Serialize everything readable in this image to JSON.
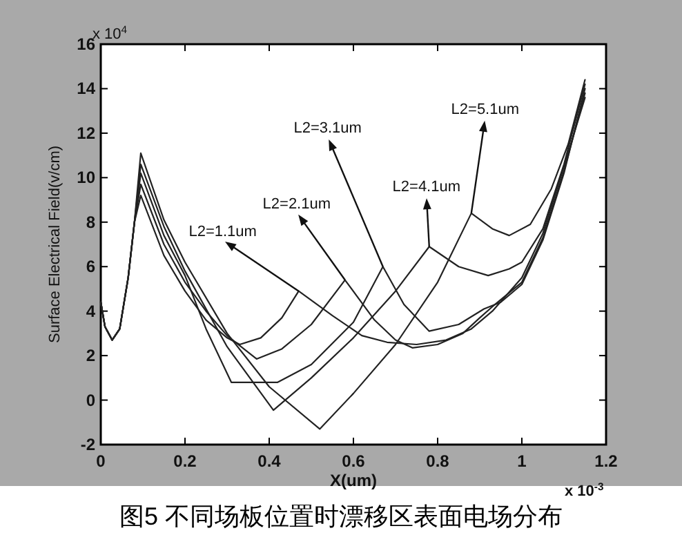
{
  "chart_data": {
    "type": "line",
    "title": "图5 不同场板位置时漂移区表面电场分布",
    "xlabel": "X(um)",
    "ylabel": "Surface Electrical Field(v/cm)",
    "xlim": [
      0,
      1.2
    ],
    "ylim": [
      -2,
      16
    ],
    "xticks": [
      0,
      0.2,
      0.4,
      0.6,
      0.8,
      1,
      1.2
    ],
    "yticks": [
      -2,
      0,
      2,
      4,
      6,
      8,
      10,
      12,
      14,
      16
    ],
    "grid": false,
    "marker": "none",
    "line_style": "solid",
    "annotations": [
      "x 10$^{4}$",
      "x 10$^{-3}$",
      {
        "text": "L2=1.1um",
        "x": 0.47,
        "y": 4.9
      },
      {
        "text": "L2=2.1um",
        "x": 0.58,
        "y": 5.4
      },
      {
        "text": "L2=3.1um",
        "x": 0.67,
        "y": 6.0
      },
      {
        "text": "L2=4.1um",
        "x": 0.78,
        "y": 6.9
      },
      {
        "text": "L2=5.1um",
        "x": 0.88,
        "y": 8.4
      }
    ],
    "series": [
      {
        "color": "#222222",
        "x": [
          0,
          0.01,
          0.027,
          0.045,
          0.065,
          0.08,
          0.095,
          0.15,
          0.2,
          0.25,
          0.3,
          0.33,
          0.38,
          0.43,
          0.47,
          0.55,
          0.62,
          0.68,
          0.75,
          0.82,
          0.88,
          0.93,
          1.0,
          1.05,
          1.1,
          1.15
        ],
        "values": [
          4.4,
          3.3,
          2.7,
          3.2,
          5.5,
          8,
          9.2,
          6.5,
          4.9,
          3.6,
          2.8,
          2.5,
          2.8,
          3.7,
          4.9,
          3.8,
          2.9,
          2.6,
          2.5,
          2.7,
          3.2,
          4.0,
          5.5,
          7.5,
          10.5,
          13.6
        ]
      },
      {
        "color": "#222222",
        "x": [
          0,
          0.01,
          0.027,
          0.045,
          0.065,
          0.08,
          0.095,
          0.15,
          0.2,
          0.25,
          0.3,
          0.37,
          0.43,
          0.5,
          0.58,
          0.65,
          0.7,
          0.74,
          0.8,
          0.86,
          0.9,
          0.93,
          1.0,
          1.05,
          1.1,
          1.15
        ],
        "values": [
          4.4,
          3.3,
          2.7,
          3.2,
          5.5,
          8,
          9.7,
          7.0,
          5.3,
          4.0,
          2.9,
          1.85,
          2.3,
          3.4,
          5.4,
          3.6,
          2.7,
          2.35,
          2.5,
          3.0,
          3.7,
          4.2,
          5.3,
          7.3,
          10.3,
          13.8
        ]
      },
      {
        "color": "#222222",
        "x": [
          0,
          0.01,
          0.027,
          0.045,
          0.065,
          0.08,
          0.095,
          0.15,
          0.2,
          0.25,
          0.31,
          0.42,
          0.5,
          0.6,
          0.67,
          0.72,
          0.78,
          0.85,
          0.91,
          0.95,
          1.0,
          1.05,
          1.1,
          1.15
        ],
        "values": [
          4.4,
          3.3,
          2.7,
          3.2,
          5.5,
          8,
          10.2,
          7.4,
          5.6,
          3.2,
          0.8,
          0.8,
          1.6,
          3.5,
          6.0,
          4.3,
          3.1,
          3.4,
          4.1,
          4.4,
          5.2,
          7.2,
          10.2,
          14.0
        ]
      },
      {
        "color": "#222222",
        "x": [
          0,
          0.01,
          0.027,
          0.045,
          0.065,
          0.08,
          0.095,
          0.15,
          0.2,
          0.3,
          0.41,
          0.5,
          0.6,
          0.7,
          0.78,
          0.85,
          0.92,
          0.97,
          1.0,
          1.05,
          1.1,
          1.15
        ],
        "values": [
          4.4,
          3.3,
          2.7,
          3.2,
          5.5,
          8,
          10.6,
          7.8,
          5.8,
          2.4,
          -0.45,
          1.0,
          2.8,
          4.9,
          6.9,
          6.0,
          5.6,
          5.9,
          6.2,
          7.7,
          10.6,
          14.2
        ]
      },
      {
        "color": "#222222",
        "x": [
          0,
          0.01,
          0.027,
          0.045,
          0.065,
          0.08,
          0.095,
          0.15,
          0.2,
          0.3,
          0.4,
          0.52,
          0.6,
          0.7,
          0.8,
          0.88,
          0.93,
          0.97,
          1.02,
          1.07,
          1.11,
          1.15
        ],
        "values": [
          4.4,
          3.3,
          2.7,
          3.2,
          5.5,
          8,
          11.1,
          8.1,
          6.2,
          3.0,
          0.6,
          -1.3,
          0.3,
          2.5,
          5.3,
          8.4,
          7.7,
          7.4,
          7.9,
          9.5,
          11.5,
          14.4
        ]
      }
    ]
  }
}
